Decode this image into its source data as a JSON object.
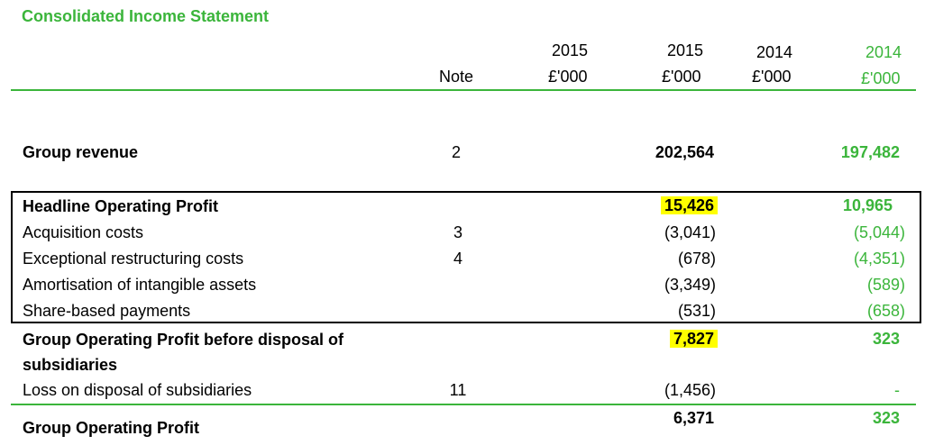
{
  "title": "Consolidated Income Statement",
  "columns": {
    "note": "Note",
    "c1_year": "2015",
    "c1_unit": "£'000",
    "c2_year": "2015",
    "c2_unit": "£'000",
    "c3_year": "2014",
    "c3_unit": "£'000",
    "c4_year": "2014",
    "c4_unit": "£'000"
  },
  "rows": {
    "group_revenue": {
      "label": "Group revenue",
      "note": "2",
      "v2015": "202,564",
      "v2014": "197,482"
    },
    "headline_operating_profit": {
      "label": "Headline Operating Profit",
      "note": "",
      "v2015": "15,426",
      "v2014": "10,965"
    },
    "acquisition_costs": {
      "label": "Acquisition costs",
      "note": "3",
      "v2015": "(3,041)",
      "v2014": "(5,044)"
    },
    "exceptional_restructuring": {
      "label": "Exceptional restructuring costs",
      "note": "4",
      "v2015": "(678)",
      "v2014": "(4,351)"
    },
    "amortisation": {
      "label": "Amortisation of intangible assets",
      "note": "",
      "v2015": "(3,349)",
      "v2014": "(589)"
    },
    "share_based": {
      "label": "Share-based payments",
      "note": "",
      "v2015": "(531)",
      "v2014": "(658)"
    },
    "operating_profit_before_disposal": {
      "label_line1": "Group Operating Profit before disposal of",
      "label_line2": "subsidiaries",
      "note": "",
      "v2015": "7,827",
      "v2014": "323"
    },
    "loss_on_disposal": {
      "label": "Loss on disposal of subsidiaries",
      "note": "11",
      "v2015": "(1,456)",
      "v2014": "-"
    },
    "group_operating_profit": {
      "label": "Group Operating Profit",
      "note": "",
      "v2015": "6,371",
      "v2014": "323"
    }
  },
  "colors": {
    "accent_green": "#3bb53b",
    "highlight": "#ffff00"
  }
}
